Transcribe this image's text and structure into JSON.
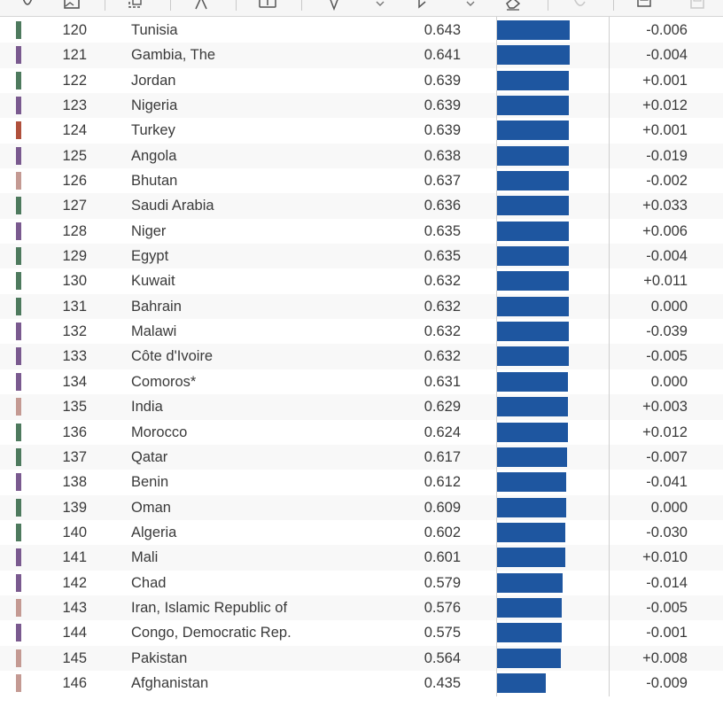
{
  "toolbar": {
    "tools": [
      {
        "name": "touch-icon"
      },
      {
        "name": "image-icon"
      },
      {
        "name": "crop-icon"
      },
      {
        "name": "text-icon"
      },
      {
        "name": "textbox-icon"
      },
      {
        "name": "pen-icon"
      },
      {
        "name": "pen-dropdown-icon"
      },
      {
        "name": "highlighter-icon"
      },
      {
        "name": "highlighter-dropdown-icon"
      },
      {
        "name": "eraser-icon"
      },
      {
        "name": "stamp-icon"
      },
      {
        "name": "print-icon"
      },
      {
        "name": "save-icon"
      }
    ]
  },
  "colors": {
    "bar": "#1e56a0",
    "region_green": "#4e7a5e",
    "region_purple": "#7a5a8f",
    "region_red": "#b0503c",
    "region_pink": "#c49a93"
  },
  "table": {
    "rows": [
      {
        "rank": "120",
        "country": "Tunisia",
        "score": "0.643",
        "value": 0.643,
        "change": "-0.006",
        "region": "green"
      },
      {
        "rank": "121",
        "country": "Gambia, The",
        "score": "0.641",
        "value": 0.641,
        "change": "-0.004",
        "region": "purple"
      },
      {
        "rank": "122",
        "country": "Jordan",
        "score": "0.639",
        "value": 0.639,
        "change": "+0.001",
        "region": "green"
      },
      {
        "rank": "123",
        "country": "Nigeria",
        "score": "0.639",
        "value": 0.639,
        "change": "+0.012",
        "region": "purple"
      },
      {
        "rank": "124",
        "country": "Turkey",
        "score": "0.639",
        "value": 0.639,
        "change": "+0.001",
        "region": "red"
      },
      {
        "rank": "125",
        "country": "Angola",
        "score": "0.638",
        "value": 0.638,
        "change": "-0.019",
        "region": "purple"
      },
      {
        "rank": "126",
        "country": "Bhutan",
        "score": "0.637",
        "value": 0.637,
        "change": "-0.002",
        "region": "pink"
      },
      {
        "rank": "127",
        "country": "Saudi Arabia",
        "score": "0.636",
        "value": 0.636,
        "change": "+0.033",
        "region": "green"
      },
      {
        "rank": "128",
        "country": "Niger",
        "score": "0.635",
        "value": 0.635,
        "change": "+0.006",
        "region": "purple"
      },
      {
        "rank": "129",
        "country": "Egypt",
        "score": "0.635",
        "value": 0.635,
        "change": "-0.004",
        "region": "green"
      },
      {
        "rank": "130",
        "country": "Kuwait",
        "score": "0.632",
        "value": 0.632,
        "change": "+0.011",
        "region": "green"
      },
      {
        "rank": "131",
        "country": "Bahrain",
        "score": "0.632",
        "value": 0.632,
        "change": "0.000",
        "region": "green"
      },
      {
        "rank": "132",
        "country": "Malawi",
        "score": "0.632",
        "value": 0.632,
        "change": "-0.039",
        "region": "purple"
      },
      {
        "rank": "133",
        "country": "Côte d'Ivoire",
        "score": "0.632",
        "value": 0.632,
        "change": "-0.005",
        "region": "purple"
      },
      {
        "rank": "134",
        "country": "Comoros*",
        "score": "0.631",
        "value": 0.631,
        "change": "0.000",
        "region": "purple"
      },
      {
        "rank": "135",
        "country": "India",
        "score": "0.629",
        "value": 0.629,
        "change": "+0.003",
        "region": "pink"
      },
      {
        "rank": "136",
        "country": "Morocco",
        "score": "0.624",
        "value": 0.624,
        "change": "+0.012",
        "region": "green"
      },
      {
        "rank": "137",
        "country": "Qatar",
        "score": "0.617",
        "value": 0.617,
        "change": "-0.007",
        "region": "green"
      },
      {
        "rank": "138",
        "country": "Benin",
        "score": "0.612",
        "value": 0.612,
        "change": "-0.041",
        "region": "purple"
      },
      {
        "rank": "139",
        "country": "Oman",
        "score": "0.609",
        "value": 0.609,
        "change": "0.000",
        "region": "green"
      },
      {
        "rank": "140",
        "country": "Algeria",
        "score": "0.602",
        "value": 0.602,
        "change": "-0.030",
        "region": "green"
      },
      {
        "rank": "141",
        "country": "Mali",
        "score": "0.601",
        "value": 0.601,
        "change": "+0.010",
        "region": "purple"
      },
      {
        "rank": "142",
        "country": "Chad",
        "score": "0.579",
        "value": 0.579,
        "change": "-0.014",
        "region": "purple"
      },
      {
        "rank": "143",
        "country": "Iran, Islamic Republic of",
        "score": "0.576",
        "value": 0.576,
        "change": "-0.005",
        "region": "pink"
      },
      {
        "rank": "144",
        "country": "Congo, Democratic Rep.",
        "score": "0.575",
        "value": 0.575,
        "change": "-0.001",
        "region": "purple"
      },
      {
        "rank": "145",
        "country": "Pakistan",
        "score": "0.564",
        "value": 0.564,
        "change": "+0.008",
        "region": "pink"
      },
      {
        "rank": "146",
        "country": "Afghanistan",
        "score": "0.435",
        "value": 0.435,
        "change": "-0.009",
        "region": "pink"
      }
    ]
  }
}
